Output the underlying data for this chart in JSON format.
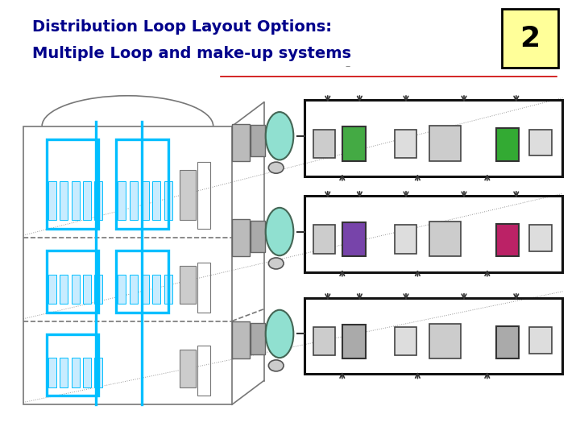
{
  "background_color": "#ffffff",
  "title_line1": "Distribution Loop Layout Options:",
  "title_line2": "Multiple Loop and make-up systems",
  "title_color": "#00008B",
  "title_fontsize": 14,
  "badge_number": "2",
  "badge_bg": "#ffff99",
  "badge_border": "#000000",
  "separator_line_color": "#cc0000",
  "cyan_color": "#00bfff",
  "light_cyan_fill": "#d0f0ff",
  "ahu_fill": "#90e0d0",
  "building_gray": "#777777",
  "floor_box_color": "#111111",
  "eq_gray_light": "#dddddd",
  "eq_gray_med": "#bbbbbb",
  "eq_green1": "#44aa44",
  "eq_green2": "#33aa33",
  "eq_purple": "#7744aa",
  "eq_magenta": "#bb2266"
}
